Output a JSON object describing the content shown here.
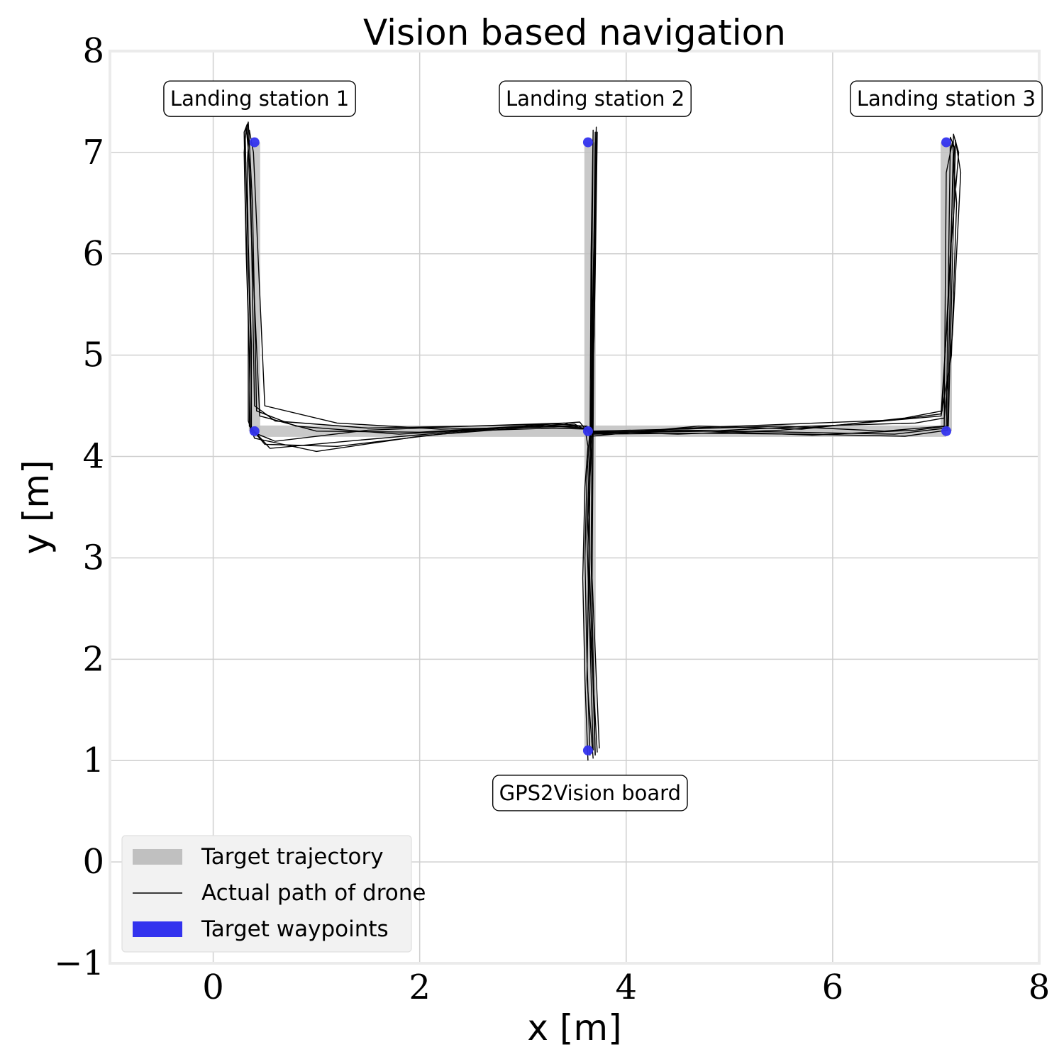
{
  "chart_data": {
    "type": "line",
    "title": "Vision based navigation",
    "xlabel": "x [m]",
    "ylabel": "y [m]",
    "xlim": [
      -1,
      8
    ],
    "ylim": [
      -1,
      8
    ],
    "xticks": [
      0,
      2,
      4,
      6,
      8
    ],
    "yticks": [
      -1,
      0,
      1,
      2,
      3,
      4,
      5,
      6,
      7,
      8
    ],
    "xtick_labels": [
      "0",
      "2",
      "4",
      "6",
      "8"
    ],
    "ytick_labels": [
      "−1",
      "0",
      "1",
      "2",
      "3",
      "4",
      "5",
      "6",
      "7",
      "8"
    ],
    "grid": true,
    "legend_position": "lower-left",
    "legend": [
      {
        "label": "Target trajectory",
        "kind": "band",
        "color": "#c0c0c0"
      },
      {
        "label": "Actual path of drone",
        "kind": "line",
        "color": "#000000"
      },
      {
        "label": "Target waypoints",
        "kind": "band",
        "color": "#3333ee"
      }
    ],
    "target_trajectory": {
      "color": "#c0c0c0",
      "segments": [
        {
          "x": [
            0.4,
            0.4
          ],
          "y": [
            7.1,
            4.25
          ]
        },
        {
          "x": [
            0.4,
            7.1
          ],
          "y": [
            4.25,
            4.25
          ]
        },
        {
          "x": [
            3.65,
            3.65
          ],
          "y": [
            7.1,
            1.1
          ]
        },
        {
          "x": [
            7.1,
            7.1
          ],
          "y": [
            4.25,
            7.1
          ]
        }
      ]
    },
    "waypoints": {
      "color": "#3333ee",
      "x": [
        0.4,
        0.4,
        3.63,
        3.63,
        3.63,
        7.1,
        7.1
      ],
      "y": [
        7.1,
        4.25,
        7.1,
        4.25,
        1.1,
        7.1,
        4.25
      ]
    },
    "annotations": [
      {
        "text": "Landing station 1",
        "x": 0.45,
        "y": 7.53
      },
      {
        "text": "Landing station 2",
        "x": 3.7,
        "y": 7.53
      },
      {
        "text": "Landing station 3",
        "x": 7.1,
        "y": 7.53
      },
      {
        "text": "GPS2Vision board",
        "x": 3.65,
        "y": 0.68
      }
    ],
    "series": [
      {
        "color": "#000000",
        "x": [
          3.65,
          3.62,
          3.6,
          3.62,
          3.64,
          3.65,
          3.6,
          3.3,
          2.5,
          1.5,
          0.6,
          0.36,
          0.35,
          0.32,
          0.3,
          0.32,
          0.36,
          0.4,
          0.6,
          1.5,
          2.5,
          3.4,
          3.65,
          4.5,
          5.5,
          6.5,
          7.05,
          7.15,
          7.2,
          7.16,
          7.1,
          7.08,
          6.5,
          5.5,
          4.5,
          3.66,
          3.68,
          3.7,
          3.68,
          3.66,
          3.7
        ],
        "y": [
          1.05,
          2.0,
          3.0,
          3.8,
          4.15,
          4.25,
          4.3,
          4.32,
          4.3,
          4.26,
          4.15,
          4.25,
          5.0,
          6.0,
          7.0,
          7.25,
          6.8,
          4.5,
          4.35,
          4.28,
          4.3,
          4.33,
          4.25,
          4.22,
          4.26,
          4.35,
          4.4,
          5.0,
          6.5,
          7.1,
          6.8,
          4.3,
          4.25,
          4.3,
          4.27,
          4.25,
          5.5,
          7.2,
          5.5,
          3.0,
          1.05
        ]
      },
      {
        "color": "#000000",
        "x": [
          3.68,
          3.65,
          3.62,
          3.64,
          3.66,
          3.62,
          3.2,
          2.2,
          1.2,
          0.5,
          0.35,
          0.36,
          0.33,
          0.31,
          0.34,
          0.38,
          0.42,
          0.8,
          1.8,
          2.8,
          3.5,
          3.68,
          4.6,
          5.6,
          6.6,
          7.05,
          7.12,
          7.18,
          7.14,
          7.1,
          6.6,
          5.6,
          4.6,
          3.66,
          3.67,
          3.68,
          3.66,
          3.64,
          3.72
        ],
        "y": [
          1.1,
          2.2,
          3.2,
          3.9,
          4.2,
          4.3,
          4.3,
          4.22,
          4.1,
          4.12,
          4.3,
          5.2,
          6.3,
          7.15,
          7.3,
          6.5,
          4.45,
          4.3,
          4.22,
          4.28,
          4.32,
          4.22,
          4.28,
          4.32,
          4.36,
          4.42,
          5.5,
          7.05,
          7.15,
          4.28,
          4.22,
          4.24,
          4.26,
          4.24,
          6.0,
          7.22,
          6.0,
          2.5,
          1.08
        ]
      },
      {
        "color": "#000000",
        "x": [
          3.63,
          3.6,
          3.58,
          3.6,
          3.63,
          3.6,
          3.1,
          2.0,
          1.0,
          0.4,
          0.34,
          0.34,
          0.31,
          0.3,
          0.33,
          0.37,
          0.45,
          1.0,
          2.0,
          3.0,
          3.55,
          3.66,
          4.7,
          5.7,
          6.7,
          7.06,
          7.14,
          7.22,
          7.17,
          7.11,
          6.7,
          5.7,
          4.7,
          3.66,
          3.69,
          3.71,
          3.67,
          3.62,
          3.68
        ],
        "y": [
          1.0,
          1.8,
          2.8,
          3.7,
          4.1,
          4.28,
          4.31,
          4.2,
          4.05,
          4.18,
          4.35,
          5.4,
          6.6,
          7.2,
          7.28,
          6.2,
          4.4,
          4.25,
          4.24,
          4.3,
          4.34,
          4.2,
          4.3,
          4.27,
          4.38,
          4.45,
          6.0,
          7.0,
          7.18,
          4.26,
          4.2,
          4.22,
          4.23,
          4.22,
          5.2,
          7.25,
          5.2,
          1.8,
          1.02
        ]
      },
      {
        "color": "#000000",
        "x": [
          3.7,
          3.66,
          3.63,
          3.66,
          3.67,
          3.64,
          3.3,
          2.4,
          1.4,
          0.55,
          0.37,
          0.37,
          0.34,
          0.33,
          0.35,
          0.39,
          0.5,
          1.2,
          2.2,
          3.2,
          3.6,
          3.67,
          4.8,
          5.8,
          6.8,
          7.08,
          7.16,
          7.24,
          7.19,
          7.12,
          6.8,
          5.8,
          4.8,
          3.67,
          3.7,
          3.72,
          3.69,
          3.67,
          3.74
        ],
        "y": [
          1.06,
          2.4,
          3.4,
          4.0,
          4.22,
          4.27,
          4.28,
          4.25,
          4.16,
          4.08,
          4.28,
          5.1,
          6.1,
          6.9,
          7.22,
          7.0,
          4.5,
          4.33,
          4.27,
          4.29,
          4.3,
          4.24,
          4.25,
          4.3,
          4.33,
          4.38,
          5.2,
          6.8,
          7.12,
          4.3,
          4.26,
          4.21,
          4.25,
          4.23,
          5.8,
          7.2,
          5.8,
          2.8,
          1.12
        ]
      }
    ]
  }
}
